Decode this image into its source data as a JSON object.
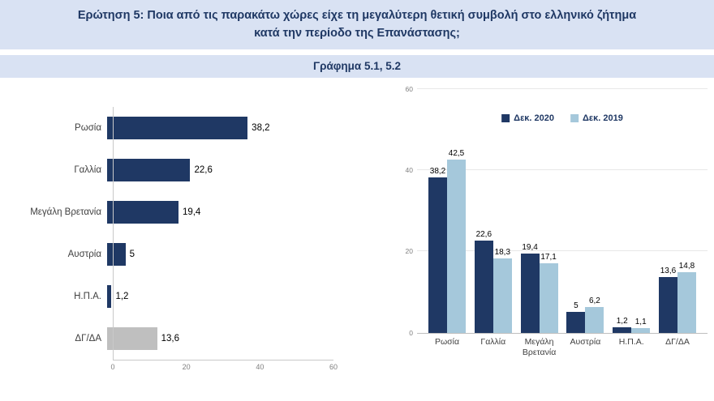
{
  "header": {
    "question": "Ερώτηση 5: Ποια από τις παρακάτω χώρες είχε τη μεγαλύτερη θετική συμβολή στο ελληνικό ζήτημα κατά την περίοδο της Επανάστασης;",
    "chart_label": "Γράφημα 5.1, 5.2"
  },
  "colors": {
    "navy": "#1F3864",
    "light_blue": "#A5C8DB",
    "gray": "#BFBFBF",
    "band_bg": "#D9E2F3",
    "title_text": "#1F3864",
    "axis_text": "#7F7F7F",
    "label_text": "#404040"
  },
  "chart_data": [
    {
      "type": "bar",
      "name": "Γράφημα 5.1",
      "orientation": "horizontal",
      "categories": [
        "Ρωσία",
        "Γαλλία",
        "Μεγάλη Βρετανία",
        "Αυστρία",
        "Η.Π.Α.",
        "ΔΓ/ΔΑ"
      ],
      "values": [
        38.2,
        22.6,
        19.4,
        5,
        1.2,
        13.6
      ],
      "value_labels": [
        "38,2",
        "22,6",
        "19,4",
        "5",
        "1,2",
        "13,6"
      ],
      "bar_colors": [
        "navy",
        "navy",
        "navy",
        "navy",
        "navy",
        "gray"
      ],
      "xlim": [
        0,
        60
      ],
      "xticks": [
        0,
        20,
        40,
        60
      ],
      "grid": false,
      "legend": "none"
    },
    {
      "type": "bar",
      "name": "Γράφημα 5.2",
      "orientation": "vertical",
      "categories": [
        "Ρωσία",
        "Γαλλία",
        "Μεγάλη Βρετανία",
        "Αυστρία",
        "Η.Π.Α.",
        "ΔΓ/ΔΑ"
      ],
      "series": [
        {
          "name": "Δεκ. 2020",
          "color": "navy",
          "values": [
            38.2,
            22.6,
            19.4,
            5,
            1.2,
            13.6
          ],
          "value_labels": [
            "38,2",
            "22,6",
            "19,4",
            "5",
            "1,2",
            "13,6"
          ]
        },
        {
          "name": "Δεκ. 2019",
          "color": "light_blue",
          "values": [
            42.5,
            18.3,
            17.1,
            6.2,
            1.1,
            14.8
          ],
          "value_labels": [
            "42,5",
            "18,3",
            "17,1",
            "6,2",
            "1,1",
            "14,8"
          ]
        }
      ],
      "ylim": [
        0,
        60
      ],
      "yticks": [
        0,
        20,
        40,
        60
      ],
      "legend_position": "top",
      "grid": true
    }
  ]
}
